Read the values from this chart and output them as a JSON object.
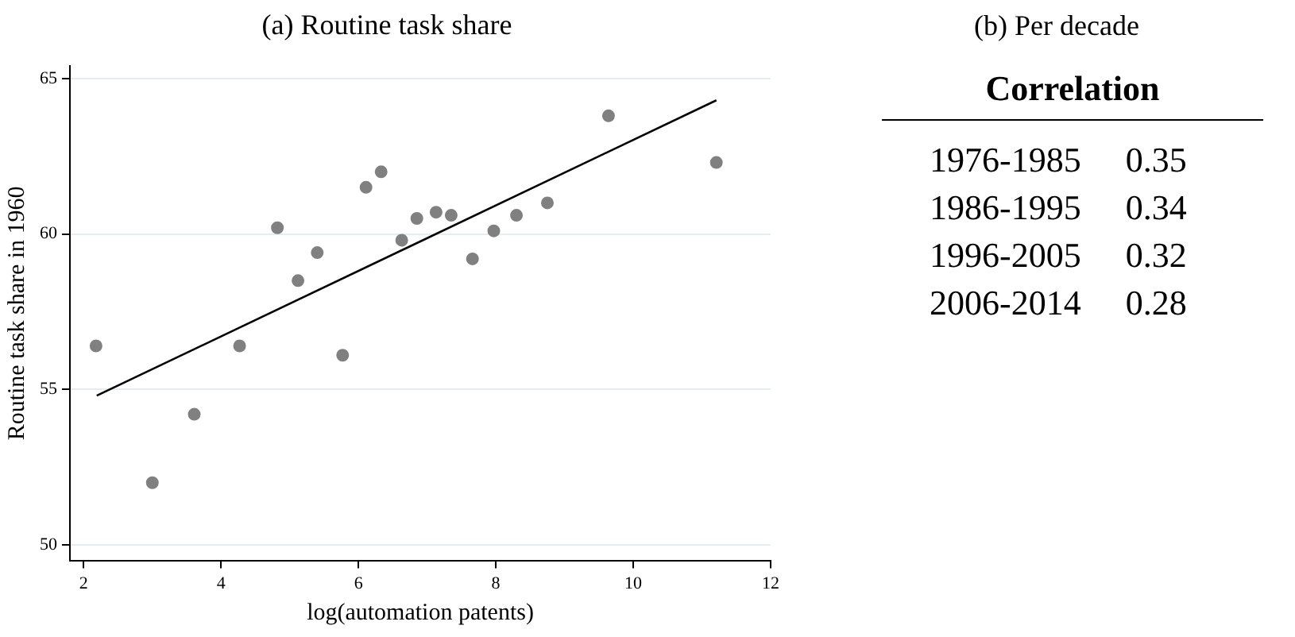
{
  "chart_data": [
    {
      "type": "scatter",
      "title": "(a) Routine task share",
      "xlabel": "log(automation patents)",
      "ylabel": "Routine task share in 1960",
      "xlim": [
        1.8,
        12
      ],
      "xticks": [
        2,
        4,
        6,
        8,
        10,
        12
      ],
      "ylim": [
        49.5,
        65.4
      ],
      "yticks": [
        50,
        55,
        60,
        65
      ],
      "grid": "y",
      "marker": "circle",
      "legend": false,
      "series": [
        {
          "type": "scatter",
          "color": "#808080",
          "x": [
            2.18,
            3.0,
            3.61,
            4.27,
            4.82,
            5.12,
            5.4,
            5.77,
            6.11,
            6.33,
            6.63,
            6.85,
            7.13,
            7.35,
            7.66,
            7.97,
            8.3,
            8.75,
            9.64,
            11.21
          ],
          "values": [
            56.4,
            52.0,
            54.2,
            56.4,
            60.2,
            58.5,
            59.4,
            56.1,
            61.5,
            62.0,
            59.8,
            60.5,
            60.7,
            60.6,
            59.2,
            60.1,
            60.6,
            61.0,
            63.8,
            62.3
          ]
        },
        {
          "type": "line",
          "color": "#000000",
          "marker": "none",
          "x": [
            2.19,
            11.21
          ],
          "values": [
            54.8,
            64.3
          ]
        }
      ]
    },
    {
      "type": "other",
      "title": "(b) Per decade",
      "subtitle": "Correlation",
      "categories": [
        "1976-1985",
        "1986-1995",
        "1996-2005",
        "2006-2014"
      ],
      "values": [
        0.35,
        0.34,
        0.32,
        0.28
      ],
      "data_labels": true
    }
  ]
}
